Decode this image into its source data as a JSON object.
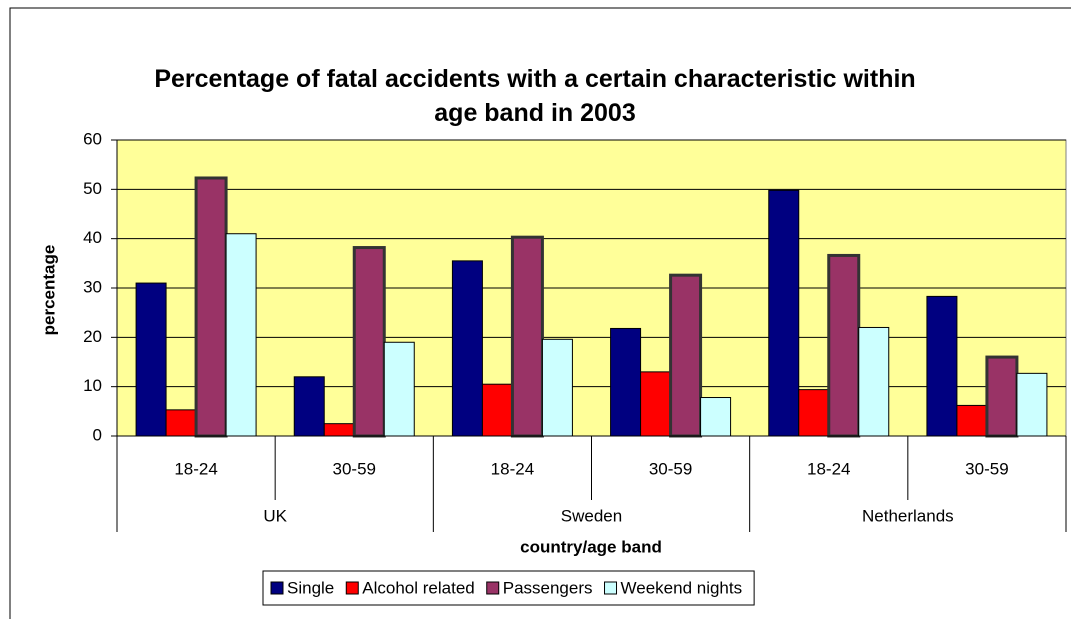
{
  "chart_data": {
    "type": "bar",
    "title": "Percentage of fatal accidents with a certain characteristic within age band in 2003",
    "categories": [
      "18-24",
      "30-59",
      "18-24",
      "30-59",
      "18-24",
      "30-59"
    ],
    "groups": [
      "UK",
      "Sweden",
      "Netherlands"
    ],
    "x_label": "country/age band",
    "y_label": "percentage",
    "series": [
      {
        "name": "Single",
        "color": "#000080",
        "values": [
          31,
          12,
          35.5,
          21.8,
          49.8,
          28.3
        ]
      },
      {
        "name": "Alcohol related",
        "color": "#ff0000",
        "values": [
          5.3,
          2.5,
          10.5,
          13,
          9.4,
          6.2
        ]
      },
      {
        "name": "Passengers",
        "color": "#993366",
        "values": [
          52.3,
          38.2,
          40.3,
          32.6,
          36.6,
          16
        ]
      },
      {
        "name": "Weekend nights",
        "color": "#ccffff",
        "values": [
          41,
          19,
          19.6,
          7.8,
          22,
          12.7
        ]
      }
    ],
    "ylim": [
      0,
      60
    ],
    "yticks": [
      0,
      10,
      20,
      30,
      40,
      50,
      60
    ],
    "grid": true,
    "plot_background": "#ffff99",
    "legend": "bottom"
  }
}
